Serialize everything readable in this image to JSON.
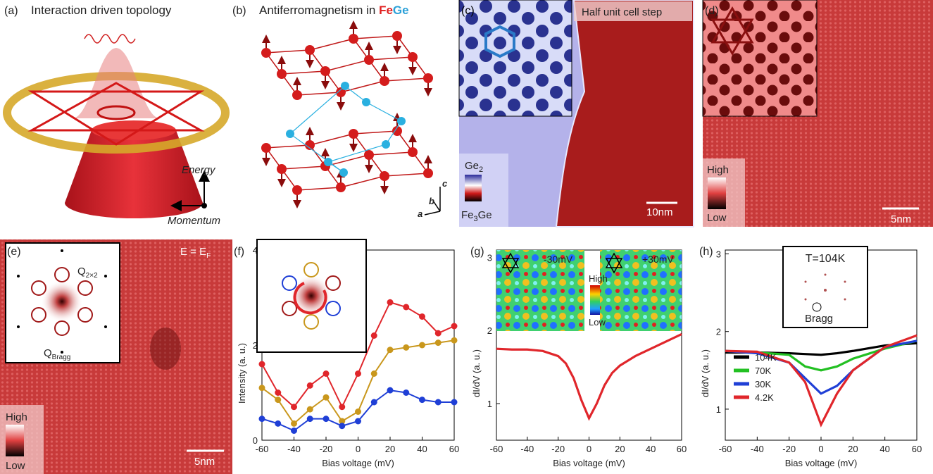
{
  "panels": {
    "a": {
      "label": "(a)",
      "title": "Interaction driven topology",
      "energy": "Energy",
      "momentum": "Momentum"
    },
    "b": {
      "label": "(b)",
      "title": "Antiferromagnetism in ",
      "fe": "Fe",
      "ge": "Ge",
      "axis_c": "c",
      "axis_b": "b",
      "axis_a": "a"
    },
    "c": {
      "label": "(c)",
      "step": "Half unit cell step",
      "top": "Ge",
      "top_sub": "2",
      "bottom": "Fe",
      "bottom_sub": "3",
      "bottom_end": "Ge",
      "scale": "10nm"
    },
    "d": {
      "label": "(d)",
      "high": "High",
      "low": "Low",
      "scale": "5nm"
    },
    "e": {
      "label": "(e)",
      "energy": "E = E",
      "energy_sub": "F",
      "q": "Q",
      "q_sub": "2×2",
      "bragg": "Q",
      "bragg_sub": "Bragg",
      "high": "High",
      "low": "Low",
      "scale": "5nm"
    }
  },
  "chart_data": [
    {
      "type": "line",
      "panel_label": "(f)",
      "xlabel": "Bias voltage (mV)",
      "ylabel": "Intensity (a. u.)",
      "x": [
        -60,
        -50,
        -40,
        -30,
        -20,
        -10,
        0,
        10,
        20,
        30,
        40,
        50,
        60
      ],
      "series": [
        {
          "color": "#e0262b",
          "values": [
            1.6,
            1.0,
            0.7,
            1.15,
            1.4,
            0.7,
            1.4,
            2.2,
            2.9,
            2.8,
            2.6,
            2.25,
            2.4
          ]
        },
        {
          "color": "#c9971c",
          "values": [
            1.1,
            0.85,
            0.35,
            0.65,
            0.9,
            0.4,
            0.6,
            1.4,
            1.9,
            1.95,
            2.0,
            2.05,
            2.1
          ]
        },
        {
          "color": "#1f3fd6",
          "values": [
            0.45,
            0.35,
            0.2,
            0.45,
            0.45,
            0.3,
            0.4,
            0.8,
            1.05,
            1.0,
            0.85,
            0.8,
            0.8
          ]
        }
      ],
      "markers": true,
      "xlim": [
        -60,
        60
      ],
      "xticks": [
        -60,
        -40,
        -20,
        0,
        20,
        40,
        60
      ],
      "ylim": [
        0,
        4
      ],
      "yticks": [
        0,
        2,
        4
      ]
    },
    {
      "type": "line",
      "panel_label": "(g)",
      "xlabel": "Bias voltage (mV)",
      "ylabel": "dI/dV (a. u.)",
      "inset_left": "-30mV",
      "inset_right": "+30mV",
      "high": "High",
      "low": "Low",
      "x": [
        -60,
        -50,
        -40,
        -30,
        -20,
        -15,
        -10,
        -5,
        0,
        5,
        10,
        15,
        20,
        30,
        40,
        50,
        60
      ],
      "series": [
        {
          "color": "#e0262b",
          "values": [
            1.75,
            1.74,
            1.74,
            1.72,
            1.65,
            1.55,
            1.35,
            1.05,
            0.8,
            1.0,
            1.25,
            1.42,
            1.52,
            1.65,
            1.75,
            1.85,
            1.95
          ]
        }
      ],
      "xlim": [
        -60,
        60
      ],
      "xticks": [
        -60,
        -40,
        -20,
        0,
        20,
        40,
        60
      ],
      "ylim": [
        0.5,
        3.1
      ],
      "yticks": [
        1,
        2,
        3
      ]
    },
    {
      "type": "line",
      "panel_label": "(h)",
      "xlabel": "Bias voltage (mV)",
      "ylabel": "dI/dV (a. u.)",
      "inset_title": "T=104K",
      "inset_label": "Bragg",
      "x": [
        -60,
        -40,
        -20,
        -10,
        0,
        10,
        20,
        40,
        60
      ],
      "series": [
        {
          "name": "104K",
          "color": "#000000",
          "values": [
            1.73,
            1.73,
            1.72,
            1.71,
            1.7,
            1.72,
            1.75,
            1.82,
            1.85
          ]
        },
        {
          "name": "70K",
          "color": "#22c022",
          "values": [
            1.75,
            1.73,
            1.7,
            1.55,
            1.5,
            1.55,
            1.65,
            1.78,
            1.88
          ]
        },
        {
          "name": "30K",
          "color": "#1f3fd6",
          "values": [
            1.75,
            1.72,
            1.6,
            1.4,
            1.2,
            1.3,
            1.5,
            1.8,
            1.88
          ]
        },
        {
          "name": "4.2K",
          "color": "#e0262b",
          "values": [
            1.75,
            1.74,
            1.6,
            1.35,
            0.8,
            1.2,
            1.5,
            1.8,
            1.95
          ]
        }
      ],
      "legend": "lower left",
      "xlim": [
        -60,
        60
      ],
      "xticks": [
        -60,
        -40,
        -20,
        0,
        20,
        40,
        60
      ],
      "ylim": [
        0.6,
        3.05
      ],
      "yticks": [
        1,
        2,
        3
      ]
    }
  ]
}
